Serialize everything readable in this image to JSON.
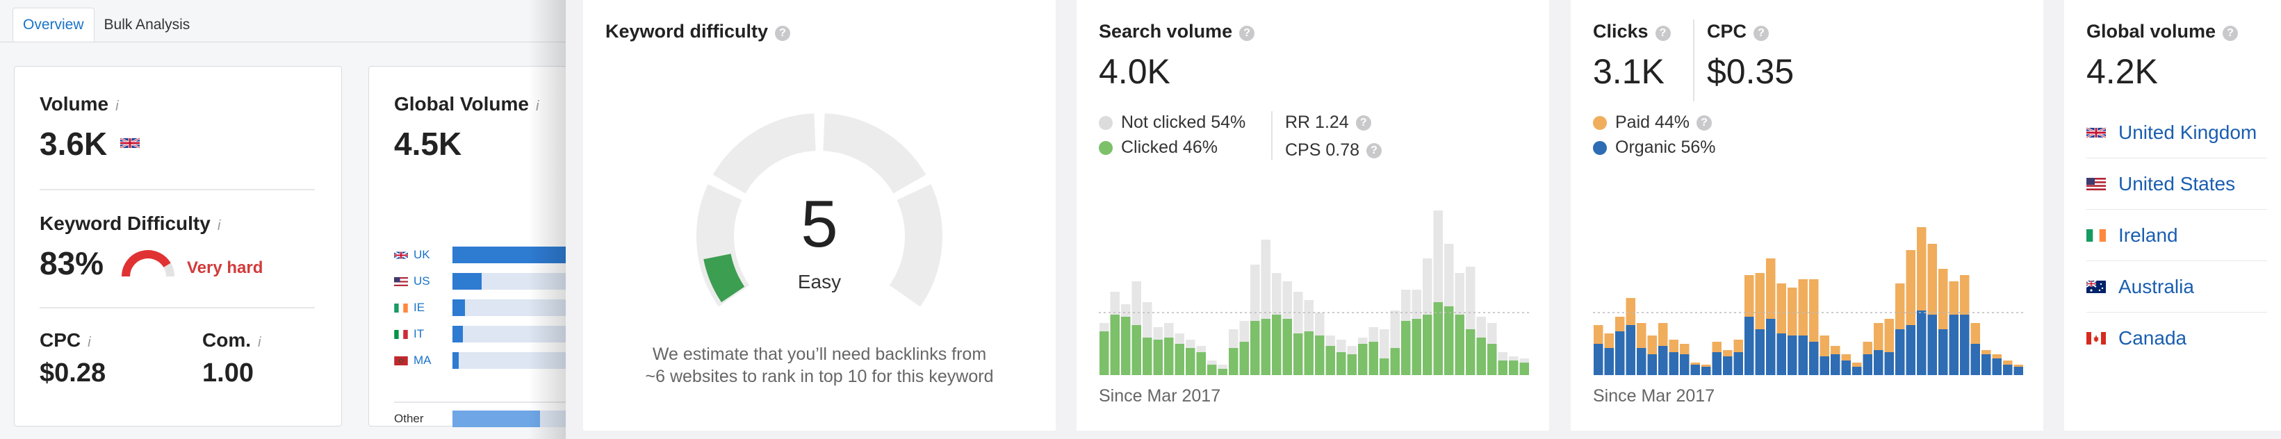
{
  "tabs": [
    {
      "label": "Overview",
      "active": true
    },
    {
      "label": "Bulk Analysis",
      "active": false
    }
  ],
  "left_panel": {
    "volume": {
      "label": "Volume",
      "info": "i",
      "value": "3.6K",
      "flag": "uk-flag-icon"
    },
    "keyword_difficulty": {
      "label": "Keyword Difficulty",
      "info": "i",
      "value": "83%",
      "level": "Very hard",
      "fill": 0.83,
      "color": "#e03232"
    },
    "cpc": {
      "label": "CPC",
      "info": "i",
      "value": "$0.28"
    },
    "competition": {
      "label": "Com.",
      "info": "i",
      "value": "1.00"
    },
    "global_volume": {
      "label": "Global Volume",
      "info": "i",
      "value": "4.5K",
      "countries": [
        {
          "code": "UK",
          "share": 1.0
        },
        {
          "code": "US",
          "share": 0.14
        },
        {
          "code": "IE",
          "share": 0.06
        },
        {
          "code": "IT",
          "share": 0.05
        },
        {
          "code": "MA",
          "share": 0.03
        }
      ],
      "other": {
        "label": "Other",
        "share": 0.42
      }
    }
  },
  "keyword_difficulty_card": {
    "title": "Keyword difficulty",
    "help": "?",
    "score": "5",
    "score_value": 5,
    "level": "Easy",
    "description_line1": "We estimate that you’ll need backlinks from",
    "description_line2": "~6 websites to rank in top 10 for this keyword",
    "color": "#3c9e50"
  },
  "search_volume_card": {
    "title": "Search volume",
    "help": "?",
    "value": "4.0K",
    "legend": [
      {
        "label": "Not clicked 54%",
        "color": "#e3e3e3"
      },
      {
        "label": "Clicked 46%",
        "color": "#7cc06a"
      }
    ],
    "rr": "RR 1.24",
    "cps": "CPS 0.78",
    "since": "Since Mar 2017",
    "chart_data": {
      "type": "bar",
      "stacked": true,
      "series": [
        {
          "name": "Clicked",
          "values": [
            42,
            58,
            56,
            48,
            36,
            34,
            36,
            30,
            26,
            22,
            10,
            6,
            26,
            32,
            52,
            54,
            58,
            54,
            40,
            42,
            38,
            28,
            22,
            20,
            30,
            32,
            16,
            26,
            52,
            54,
            58,
            70,
            66,
            58,
            44,
            36,
            30,
            14,
            14,
            12
          ]
        },
        {
          "name": "Not clicked",
          "values": [
            8,
            22,
            12,
            42,
            34,
            12,
            14,
            10,
            8,
            6,
            4,
            4,
            18,
            20,
            54,
            76,
            40,
            36,
            40,
            30,
            22,
            10,
            12,
            8,
            6,
            14,
            28,
            36,
            30,
            28,
            54,
            88,
            60,
            40,
            60,
            20,
            20,
            8,
            4,
            4
          ]
        }
      ]
    }
  },
  "clicks_card": {
    "title": "Clicks",
    "help": "?",
    "value": "3.1K",
    "legend": [
      {
        "label": "Paid 44%",
        "color": "#f0ad5c"
      },
      {
        "label": "Organic 56%",
        "color": "#2e6cb3"
      }
    ],
    "since": "Since Mar 2017",
    "chart_data": {
      "type": "bar",
      "stacked": true,
      "series": [
        {
          "name": "Organic",
          "values": [
            30,
            26,
            42,
            48,
            26,
            20,
            28,
            22,
            20,
            10,
            8,
            22,
            18,
            22,
            56,
            44,
            54,
            40,
            38,
            38,
            32,
            18,
            20,
            14,
            8,
            20,
            24,
            22,
            44,
            48,
            62,
            58,
            44,
            58,
            58,
            30,
            20,
            16,
            10,
            8
          ]
        },
        {
          "name": "Paid",
          "values": [
            18,
            14,
            14,
            26,
            24,
            18,
            22,
            12,
            10,
            2,
            2,
            10,
            6,
            12,
            40,
            54,
            58,
            48,
            46,
            54,
            60,
            20,
            8,
            6,
            4,
            12,
            26,
            32,
            44,
            72,
            80,
            68,
            58,
            32,
            38,
            20,
            4,
            4,
            4,
            2
          ]
        }
      ]
    }
  },
  "cpc_card": {
    "title": "CPC",
    "help": "?",
    "value": "$0.35"
  },
  "global_volume_card": {
    "title": "Global volume",
    "help": "?",
    "value": "4.2K",
    "countries": [
      {
        "name": "United Kingdom",
        "flag": "uk-flag-icon"
      },
      {
        "name": "United States",
        "flag": "us-flag-icon"
      },
      {
        "name": "Ireland",
        "flag": "ie-flag-icon"
      },
      {
        "name": "Australia",
        "flag": "au-flag-icon"
      },
      {
        "name": "Canada",
        "flag": "ca-flag-icon"
      }
    ]
  }
}
